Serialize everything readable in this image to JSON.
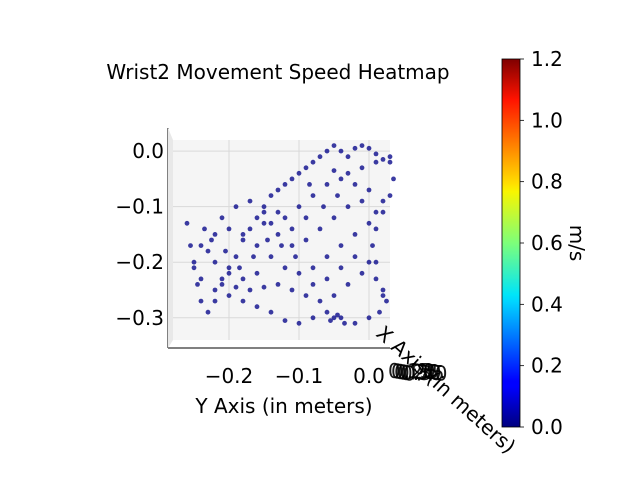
{
  "chart_data": {
    "type": "scatter",
    "title": "Wrist2 Movement Speed Heatmap",
    "ylabel": "Y Axis (in meters)",
    "xlabel": "X Axis (in meters)",
    "colorbar_label": "m/s",
    "colormap": "jet",
    "colorbar_ticks": [
      "0.0",
      "0.2",
      "0.4",
      "0.6",
      "0.8",
      "1.0",
      "1.2"
    ],
    "colorbar_range": [
      0.0,
      1.2
    ],
    "y_ticks": [
      "−0.2",
      "−0.1",
      "0.0"
    ],
    "y_range": [
      -0.28,
      0.03
    ],
    "z_ticks": [
      "0.0",
      "−0.1",
      "−0.2",
      "−0.3"
    ],
    "z_range": [
      -0.34,
      0.02
    ],
    "x_tick_texts_overlapping": [
      "0.15",
      "0.20",
      "0.25",
      "0.30",
      "0.35",
      "0.40"
    ],
    "point_color": "#0b0b8c",
    "point_speed_approx": 0.02,
    "points": [
      [
        -0.26,
        -0.13
      ],
      [
        -0.255,
        -0.17
      ],
      [
        -0.25,
        -0.21
      ],
      [
        -0.245,
        -0.24
      ],
      [
        -0.24,
        -0.27
      ],
      [
        -0.23,
        -0.29
      ],
      [
        -0.22,
        -0.27
      ],
      [
        -0.21,
        -0.24
      ],
      [
        -0.2,
        -0.21
      ],
      [
        -0.19,
        -0.19
      ],
      [
        -0.18,
        -0.16
      ],
      [
        -0.17,
        -0.14
      ],
      [
        -0.16,
        -0.12
      ],
      [
        -0.15,
        -0.1
      ],
      [
        -0.14,
        -0.08
      ],
      [
        -0.13,
        -0.07
      ],
      [
        -0.12,
        -0.06
      ],
      [
        -0.11,
        -0.05
      ],
      [
        -0.1,
        -0.04
      ],
      [
        -0.09,
        -0.03
      ],
      [
        -0.08,
        -0.02
      ],
      [
        -0.07,
        -0.01
      ],
      [
        -0.06,
        0.0
      ],
      [
        -0.05,
        0.01
      ],
      [
        -0.04,
        0.0
      ],
      [
        -0.03,
        -0.01
      ],
      [
        -0.02,
        0.005
      ],
      [
        -0.01,
        0.01
      ],
      [
        0.0,
        0.005
      ],
      [
        0.01,
        -0.005
      ],
      [
        0.02,
        -0.015
      ],
      [
        0.03,
        -0.02
      ],
      [
        0.035,
        -0.05
      ],
      [
        0.03,
        -0.08
      ],
      [
        0.02,
        -0.11
      ],
      [
        0.01,
        -0.14
      ],
      [
        0.005,
        -0.17
      ],
      [
        0.0,
        -0.2
      ],
      [
        0.01,
        -0.23
      ],
      [
        0.02,
        -0.26
      ],
      [
        0.015,
        -0.29
      ],
      [
        0.0,
        -0.3
      ],
      [
        -0.02,
        -0.31
      ],
      [
        -0.04,
        -0.3
      ],
      [
        -0.06,
        -0.29
      ],
      [
        -0.08,
        -0.3
      ],
      [
        -0.1,
        -0.31
      ],
      [
        -0.12,
        -0.305
      ],
      [
        -0.14,
        -0.29
      ],
      [
        -0.16,
        -0.28
      ],
      [
        -0.18,
        -0.27
      ],
      [
        -0.2,
        -0.26
      ],
      [
        -0.22,
        -0.25
      ],
      [
        -0.24,
        -0.23
      ],
      [
        -0.25,
        -0.2
      ],
      [
        -0.24,
        -0.17
      ],
      [
        -0.22,
        -0.15
      ],
      [
        -0.2,
        -0.14
      ],
      [
        -0.18,
        -0.15
      ],
      [
        -0.16,
        -0.17
      ],
      [
        -0.14,
        -0.19
      ],
      [
        -0.12,
        -0.21
      ],
      [
        -0.1,
        -0.22
      ],
      [
        -0.08,
        -0.21
      ],
      [
        -0.06,
        -0.19
      ],
      [
        -0.04,
        -0.17
      ],
      [
        -0.02,
        -0.15
      ],
      [
        0.0,
        -0.13
      ],
      [
        0.01,
        -0.11
      ],
      [
        0.02,
        -0.09
      ],
      [
        0.0,
        -0.07
      ],
      [
        -0.02,
        -0.06
      ],
      [
        -0.04,
        -0.05
      ],
      [
        -0.06,
        -0.06
      ],
      [
        -0.08,
        -0.08
      ],
      [
        -0.1,
        -0.1
      ],
      [
        -0.12,
        -0.12
      ],
      [
        -0.14,
        -0.13
      ],
      [
        -0.16,
        -0.22
      ],
      [
        -0.18,
        -0.23
      ],
      [
        -0.2,
        -0.22
      ],
      [
        -0.22,
        -0.2
      ],
      [
        -0.23,
        -0.18
      ],
      [
        -0.21,
        -0.12
      ],
      [
        -0.19,
        -0.1
      ],
      [
        -0.17,
        -0.09
      ],
      [
        -0.15,
        -0.11
      ],
      [
        -0.13,
        -0.15
      ],
      [
        -0.11,
        -0.17
      ],
      [
        -0.09,
        -0.16
      ],
      [
        -0.07,
        -0.14
      ],
      [
        -0.05,
        -0.12
      ],
      [
        -0.03,
        -0.1
      ],
      [
        -0.01,
        -0.09
      ],
      [
        0.01,
        -0.2
      ],
      [
        -0.01,
        -0.22
      ],
      [
        -0.03,
        -0.24
      ],
      [
        -0.05,
        -0.26
      ],
      [
        -0.07,
        -0.27
      ],
      [
        -0.09,
        -0.26
      ],
      [
        -0.11,
        -0.25
      ],
      [
        -0.13,
        -0.24
      ],
      [
        -0.15,
        -0.245
      ],
      [
        -0.17,
        -0.25
      ],
      [
        -0.19,
        -0.245
      ],
      [
        -0.21,
        -0.23
      ],
      [
        -0.05,
        -0.3
      ],
      [
        -0.045,
        -0.295
      ],
      [
        -0.055,
        -0.305
      ],
      [
        -0.035,
        -0.31
      ],
      [
        0.02,
        -0.25
      ],
      [
        0.025,
        -0.27
      ],
      [
        -0.08,
        -0.24
      ],
      [
        -0.06,
        -0.23
      ],
      [
        -0.04,
        -0.21
      ],
      [
        -0.02,
        -0.19
      ],
      [
        -0.11,
        -0.14
      ],
      [
        -0.09,
        -0.12
      ],
      [
        -0.13,
        -0.11
      ],
      [
        -0.15,
        -0.13
      ],
      [
        -0.05,
        -0.035
      ],
      [
        -0.03,
        -0.04
      ],
      [
        -0.01,
        -0.03
      ],
      [
        0.01,
        -0.02
      ],
      [
        0.03,
        -0.01
      ],
      [
        -0.065,
        -0.1
      ],
      [
        -0.045,
        -0.08
      ],
      [
        -0.085,
        -0.06
      ],
      [
        -0.105,
        -0.19
      ],
      [
        -0.125,
        -0.17
      ],
      [
        -0.145,
        -0.16
      ],
      [
        -0.165,
        -0.19
      ],
      [
        -0.185,
        -0.21
      ],
      [
        -0.205,
        -0.18
      ],
      [
        -0.225,
        -0.16
      ],
      [
        -0.235,
        -0.14
      ]
    ]
  }
}
